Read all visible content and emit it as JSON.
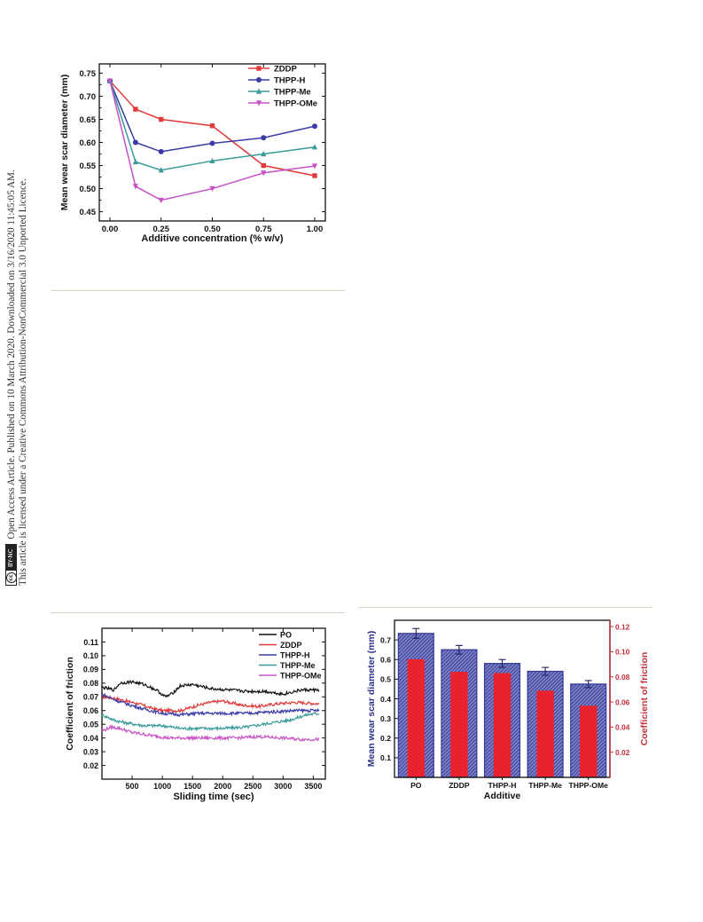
{
  "license_banner": {
    "line1": "Open Access Article. Published on 10 March 2020. Downloaded on 3/16/2020 11:45:05 AM.",
    "line2": "This article is licensed under a Creative Commons Attribution-NonCommercial 3.0 Unported Licence.",
    "cc_symbol": "cc",
    "cc_label": "BY-NC"
  },
  "colors": {
    "ZDDP": "#e03a3a",
    "THPP-H": "#3b3ba8",
    "THPP-Me": "#3a9a9a",
    "THPP-OMe": "#c652c6",
    "PO": "#111111",
    "bar_blue": "#3b3f9a",
    "bar_red": "#e8232f",
    "axis_red": "#c0303a"
  },
  "chart_data": [
    {
      "id": "wsd-vs-concentration",
      "type": "line",
      "xlabel": "Additive concentration (% w/v)",
      "ylabel": "Mean wear scar diameter (mm)",
      "xlim": [
        0.0,
        1.0
      ],
      "ylim": [
        0.43,
        0.77
      ],
      "xticks": [
        "0.00",
        "0.25",
        "0.50",
        "0.75",
        "1.00"
      ],
      "yticks": [
        "0.45",
        "0.50",
        "0.55",
        "0.60",
        "0.65",
        "0.70",
        "0.75"
      ],
      "legend": "top-right",
      "series": [
        {
          "name": "ZDDP",
          "marker": "square",
          "x": [
            0,
            0.125,
            0.25,
            0.5,
            0.75,
            1.0
          ],
          "y": [
            0.733,
            0.672,
            0.65,
            0.636,
            0.55,
            0.528
          ]
        },
        {
          "name": "THPP-H",
          "marker": "circle",
          "x": [
            0,
            0.125,
            0.25,
            0.5,
            0.75,
            1.0
          ],
          "y": [
            0.733,
            0.6,
            0.58,
            0.598,
            0.61,
            0.635
          ]
        },
        {
          "name": "THPP-Me",
          "marker": "triangle-up",
          "x": [
            0,
            0.125,
            0.25,
            0.5,
            0.75,
            1.0
          ],
          "y": [
            0.733,
            0.558,
            0.54,
            0.56,
            0.575,
            0.59
          ]
        },
        {
          "name": "THPP-OMe",
          "marker": "triangle-down",
          "x": [
            0,
            0.125,
            0.25,
            0.5,
            0.75,
            1.0
          ],
          "y": [
            0.733,
            0.505,
            0.475,
            0.5,
            0.534,
            0.549
          ]
        }
      ]
    },
    {
      "id": "cof-vs-time",
      "type": "line",
      "xlabel": "Sliding time (sec)",
      "ylabel": "Coefficient of friction",
      "xlim": [
        0,
        3700
      ],
      "ylim": [
        0.01,
        0.12
      ],
      "xticks": [
        "500",
        "1000",
        "1500",
        "2000",
        "2500",
        "3000",
        "3500"
      ],
      "yticks": [
        "0.02",
        "0.03",
        "0.04",
        "0.05",
        "0.06",
        "0.07",
        "0.08",
        "0.09",
        "0.10",
        "0.11"
      ],
      "legend": "top-right",
      "series": [
        {
          "name": "PO",
          "x": [
            0,
            200,
            300,
            500,
            700,
            900,
            1050,
            1150,
            1300,
            1500,
            1800,
            2100,
            2400,
            2700,
            3000,
            3300,
            3600
          ],
          "y": [
            0.077,
            0.075,
            0.08,
            0.081,
            0.079,
            0.075,
            0.07,
            0.072,
            0.078,
            0.079,
            0.076,
            0.075,
            0.074,
            0.074,
            0.072,
            0.075,
            0.075
          ]
        },
        {
          "name": "ZDDP",
          "x": [
            0,
            200,
            400,
            600,
            800,
            1000,
            1300,
            1600,
            1800,
            2000,
            2300,
            2600,
            2900,
            3200,
            3600
          ],
          "y": [
            0.07,
            0.069,
            0.067,
            0.065,
            0.062,
            0.06,
            0.06,
            0.064,
            0.066,
            0.067,
            0.064,
            0.063,
            0.065,
            0.066,
            0.065
          ]
        },
        {
          "name": "THPP-H",
          "x": [
            0,
            200,
            400,
            700,
            1000,
            1300,
            1600,
            2000,
            2400,
            2800,
            3200,
            3600
          ],
          "y": [
            0.072,
            0.068,
            0.065,
            0.061,
            0.058,
            0.057,
            0.058,
            0.058,
            0.058,
            0.059,
            0.06,
            0.06
          ]
        },
        {
          "name": "THPP-Me",
          "x": [
            0,
            200,
            400,
            700,
            1000,
            1300,
            1600,
            2000,
            2400,
            2800,
            3100,
            3400,
            3600
          ],
          "y": [
            0.057,
            0.053,
            0.051,
            0.049,
            0.049,
            0.047,
            0.047,
            0.047,
            0.048,
            0.051,
            0.053,
            0.057,
            0.058
          ]
        },
        {
          "name": "THPP-OMe",
          "x": [
            0,
            150,
            300,
            500,
            800,
            1100,
            1400,
            1800,
            2200,
            2600,
            3000,
            3300,
            3600
          ],
          "y": [
            0.045,
            0.048,
            0.047,
            0.044,
            0.042,
            0.04,
            0.04,
            0.04,
            0.04,
            0.041,
            0.04,
            0.039,
            0.039
          ]
        }
      ]
    },
    {
      "id": "wsd-cof-bars",
      "type": "bar",
      "xlabel": "Additive",
      "ylabel": "Mean wear scar diameter (mm)",
      "y2label": "Coefficient of friction",
      "categories": [
        "PO",
        "ZDDP",
        "THPP-H",
        "THPP-Me",
        "THPP-OMe"
      ],
      "ylim": [
        0.0,
        0.8
      ],
      "y2lim": [
        0.0,
        0.125
      ],
      "yticks": [
        "0.1",
        "0.2",
        "0.3",
        "0.4",
        "0.5",
        "0.6",
        "0.7"
      ],
      "y2ticks": [
        "0.02",
        "0.04",
        "0.06",
        "0.08",
        "0.10",
        "0.12"
      ],
      "series": [
        {
          "name": "Mean wear scar diameter",
          "axis": "left",
          "values": [
            0.733,
            0.65,
            0.58,
            0.54,
            0.475
          ],
          "errors": [
            0.025,
            0.022,
            0.02,
            0.02,
            0.018
          ]
        },
        {
          "name": "Coefficient of friction",
          "axis": "right",
          "values": [
            0.094,
            0.084,
            0.083,
            0.069,
            0.057
          ]
        }
      ]
    }
  ]
}
